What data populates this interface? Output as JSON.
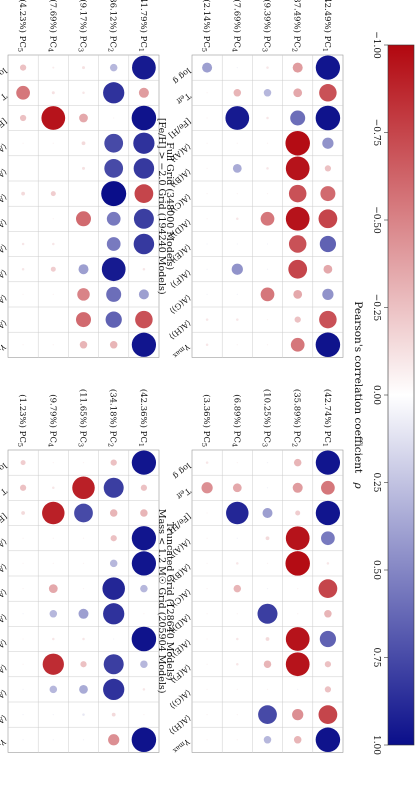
{
  "colorbar": {
    "label": "Pearson's correlation coefficient",
    "symbol": "ρ",
    "ticks": [
      "−1.00",
      "−0.75",
      "−0.50",
      "−0.25",
      "0.00",
      "0.25",
      "0.50",
      "0.75",
      "1.00"
    ],
    "tick_values": [
      -1,
      -0.75,
      -0.5,
      -0.25,
      0,
      0.25,
      0.5,
      0.75,
      1
    ],
    "low_color": "#b2070f",
    "mid_color": "#ffffff",
    "high_color": "#0a0e8a"
  },
  "chart_data": [
    {
      "type": "heatmap",
      "title": "Full Grid  (348000 Models)",
      "columns": [
        "log g",
        "T_eff",
        "[Fe/H]",
        "⟨A(A)⟩",
        "⟨A(B)⟩",
        "⟨A(C)⟩",
        "⟨A(D)⟩",
        "⟨A(E)⟩",
        "⟨A(F)⟩",
        "⟨A(G)⟩",
        "⟨A(H)⟩",
        "γ_max"
      ],
      "rows": [
        "(41.79%) PC1",
        "(36.12%) PC2",
        "(9.17%) PC3",
        "(7.69%) PC4",
        "(4.23%) PC5"
      ],
      "values": [
        [
          0.95,
          -0.4,
          0.98,
          0.85,
          0.82,
          -0.75,
          0.8,
          0.82,
          -0.1,
          0.4,
          -0.7,
          0.97
        ],
        [
          0.3,
          0.85,
          -0.05,
          0.75,
          0.75,
          1.0,
          0.55,
          0.55,
          0.95,
          0.6,
          0.65,
          -0.3
        ],
        [
          -0.12,
          -0.1,
          -0.35,
          -0.15,
          -0.12,
          0.0,
          -0.6,
          0.0,
          0.4,
          -0.5,
          -0.6,
          -0.3
        ],
        [
          -0.08,
          -0.12,
          -0.95,
          -0.05,
          0.0,
          -0.2,
          -0.05,
          -0.1,
          -0.2,
          -0.05,
          0.0,
          -0.05
        ],
        [
          -0.25,
          -0.55,
          -0.25,
          -0.05,
          0.0,
          -0.15,
          0.0,
          -0.1,
          -0.1,
          -0.05,
          0.0,
          -0.05
        ]
      ]
    },
    {
      "type": "heatmap",
      "title": "Truncated Grid  (128640 Models)",
      "columns": [
        "log g",
        "T_eff",
        "[Fe/H]",
        "⟨A(A)⟩",
        "⟨A(B)⟩",
        "⟨A(C)⟩",
        "⟨A(D)⟩",
        "⟨A(E)⟩",
        "⟨A(F)⟩",
        "⟨A(G)⟩",
        "⟨A(H)⟩",
        "γ_max"
      ],
      "rows": [
        "(42.36%) PC1",
        "(34.18%) PC2",
        "(11.65%) PC3",
        "(9.79%) PC4",
        "(1.23%) PC5"
      ],
      "values": [
        [
          0.97,
          -0.25,
          -0.3,
          0.97,
          0.97,
          0.3,
          -0.05,
          0.98,
          0.3,
          -0.1,
          -0.05,
          0.98
        ],
        [
          -0.25,
          0.8,
          -0.3,
          -0.25,
          0.3,
          0.9,
          0.85,
          0.05,
          0.8,
          0.85,
          -0.15,
          -0.45
        ],
        [
          -0.05,
          -0.9,
          0.75,
          -0.05,
          -0.05,
          -0.05,
          0.4,
          -0.1,
          -0.25,
          0.35,
          0.1,
          0.05
        ],
        [
          -0.05,
          -0.1,
          -0.9,
          -0.05,
          -0.05,
          -0.35,
          0.3,
          -0.1,
          -0.85,
          0.3,
          0.05,
          0.05
        ],
        [
          -0.2,
          -0.25,
          -0.15,
          -0.05,
          -0.05,
          -0.05,
          0.05,
          -0.05,
          -0.05,
          0.05,
          0.05,
          0.05
        ]
      ]
    },
    {
      "type": "heatmap",
      "title": "[Fe/H] > −2.0 Grid  (194240 Models)",
      "columns": [
        "log g",
        "T_eff",
        "[Fe/H]",
        "⟨A(A)⟩",
        "⟨A(B)⟩",
        "⟨A(C)⟩",
        "⟨A(D)⟩",
        "⟨A(E)⟩",
        "⟨A(F)⟩",
        "⟨A(G)⟩",
        "⟨A(H)⟩",
        "γ_max"
      ],
      "rows": [
        "(42.49%) PC1",
        "(37.49%) PC2",
        "(9.39%) PC3",
        "(7.69%) PC4",
        "(2.14%) PC5"
      ],
      "values": [
        [
          0.97,
          -0.7,
          0.98,
          0.45,
          -0.25,
          -0.6,
          -0.75,
          0.65,
          -0.35,
          0.45,
          -0.7,
          0.98
        ],
        [
          -0.4,
          -0.35,
          0.6,
          -0.98,
          -0.95,
          -0.7,
          -0.95,
          -0.7,
          -0.75,
          -0.35,
          -0.25,
          -0.55
        ],
        [
          -0.1,
          0.3,
          -0.1,
          -0.05,
          -0.1,
          -0.05,
          -0.55,
          0.05,
          0.05,
          -0.55,
          -0.05,
          -0.05
        ],
        [
          0.05,
          -0.3,
          0.95,
          -0.05,
          0.35,
          -0.05,
          -0.1,
          0.05,
          0.45,
          0.05,
          -0.1,
          -0.05
        ],
        [
          0.4,
          -0.05,
          -0.05,
          -0.05,
          -0.05,
          -0.05,
          -0.05,
          0.05,
          0.05,
          0.05,
          -0.1,
          -0.1
        ]
      ]
    },
    {
      "type": "heatmap",
      "title": "Mass < 1.2 M☉ Grid  (205904 Models)",
      "columns": [
        "log g",
        "T_eff",
        "[Fe/H]",
        "⟨A(A)⟩",
        "⟨A(B)⟩",
        "⟨A(C)⟩",
        "⟨A(D)⟩",
        "⟨A(E)⟩",
        "⟨A(F)⟩",
        "⟨A(G)⟩",
        "⟨A(H)⟩",
        "γ_max"
      ],
      "rows": [
        "(42.74%) PC1",
        "(35.89%) PC2",
        "(10.25%) PC3",
        "(6.89%) PC4",
        "(3.36%) PC5"
      ],
      "values": [
        [
          0.97,
          -0.55,
          0.97,
          0.55,
          -0.1,
          -0.75,
          -0.3,
          0.65,
          -0.25,
          -0.25,
          -0.75,
          0.98
        ],
        [
          -0.3,
          -0.4,
          -0.2,
          -0.95,
          -0.98,
          -0.05,
          -0.05,
          -0.95,
          -0.95,
          0.05,
          -0.45,
          -0.3
        ],
        [
          0.05,
          0.05,
          0.4,
          -0.15,
          -0.05,
          0.05,
          0.8,
          -0.15,
          -0.3,
          -0.05,
          0.75,
          0.3
        ],
        [
          -0.05,
          -0.35,
          0.9,
          0.05,
          -0.1,
          -0.3,
          -0.05,
          -0.1,
          -0.1,
          -0.05,
          -0.05,
          -0.05
        ],
        [
          -0.1,
          -0.45,
          -0.05,
          -0.05,
          -0.05,
          -0.05,
          -0.05,
          -0.05,
          -0.05,
          -0.05,
          -0.05,
          -0.05
        ]
      ]
    }
  ]
}
